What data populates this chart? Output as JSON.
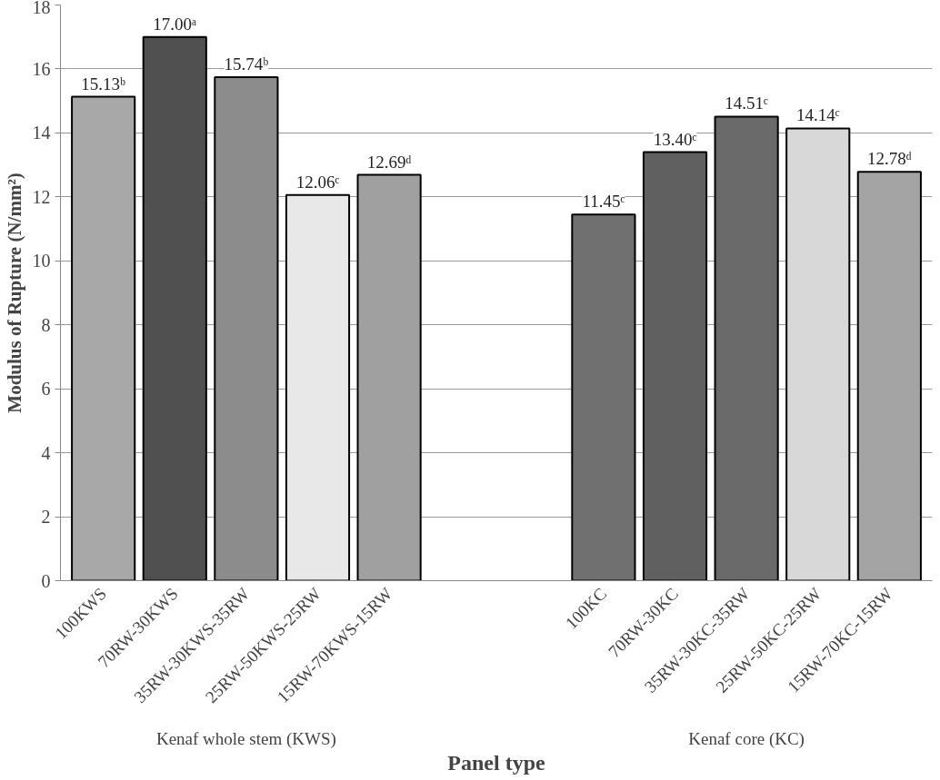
{
  "chart_data": {
    "type": "bar",
    "xlabel": "Panel type",
    "ylabel": "Modulus of Rupture (N/mm²)",
    "categories": [
      "100KWS",
      "70RW-30KWS",
      "35RW-30KWS-35RW",
      "25RW-50KWS-25RW",
      "15RW-70KWS-15RW",
      null,
      null,
      "100KC",
      "70RW-30KC",
      "35RW-30KC-35RW",
      "25RW-50KC-25RW",
      "15RW-70KC-15RW"
    ],
    "values": [
      15.13,
      17.0,
      15.74,
      12.06,
      12.69,
      null,
      null,
      11.45,
      13.4,
      14.51,
      14.14,
      12.78
    ],
    "value_labels": [
      "15.13ᵇ",
      "17.00ᵃ",
      "15.74ᵇ",
      "12.06ᶜ",
      "12.69ᵈ",
      null,
      null,
      "11.45ᶜ",
      "13.40ᶜ",
      "14.51ᶜ",
      "14.14ᶜ",
      "12.78ᵈ"
    ],
    "colors": [
      "#a8a8a8",
      "#505050",
      "#8c8c8c",
      "#e8e8e8",
      "#a0a0a0",
      "#ffffff",
      "#ffffff",
      "#707070",
      "#606060",
      "#6a6a6a",
      "#d8d8d8",
      "#a4a4a4"
    ],
    "annotations": [
      "Kenaf whole stem (KWS)",
      "Kenaf core (KC)"
    ],
    "ylim": [
      0,
      18
    ],
    "yticks": [
      0,
      2,
      4,
      6,
      8,
      10,
      12,
      14,
      16,
      18
    ],
    "grid": "y"
  }
}
